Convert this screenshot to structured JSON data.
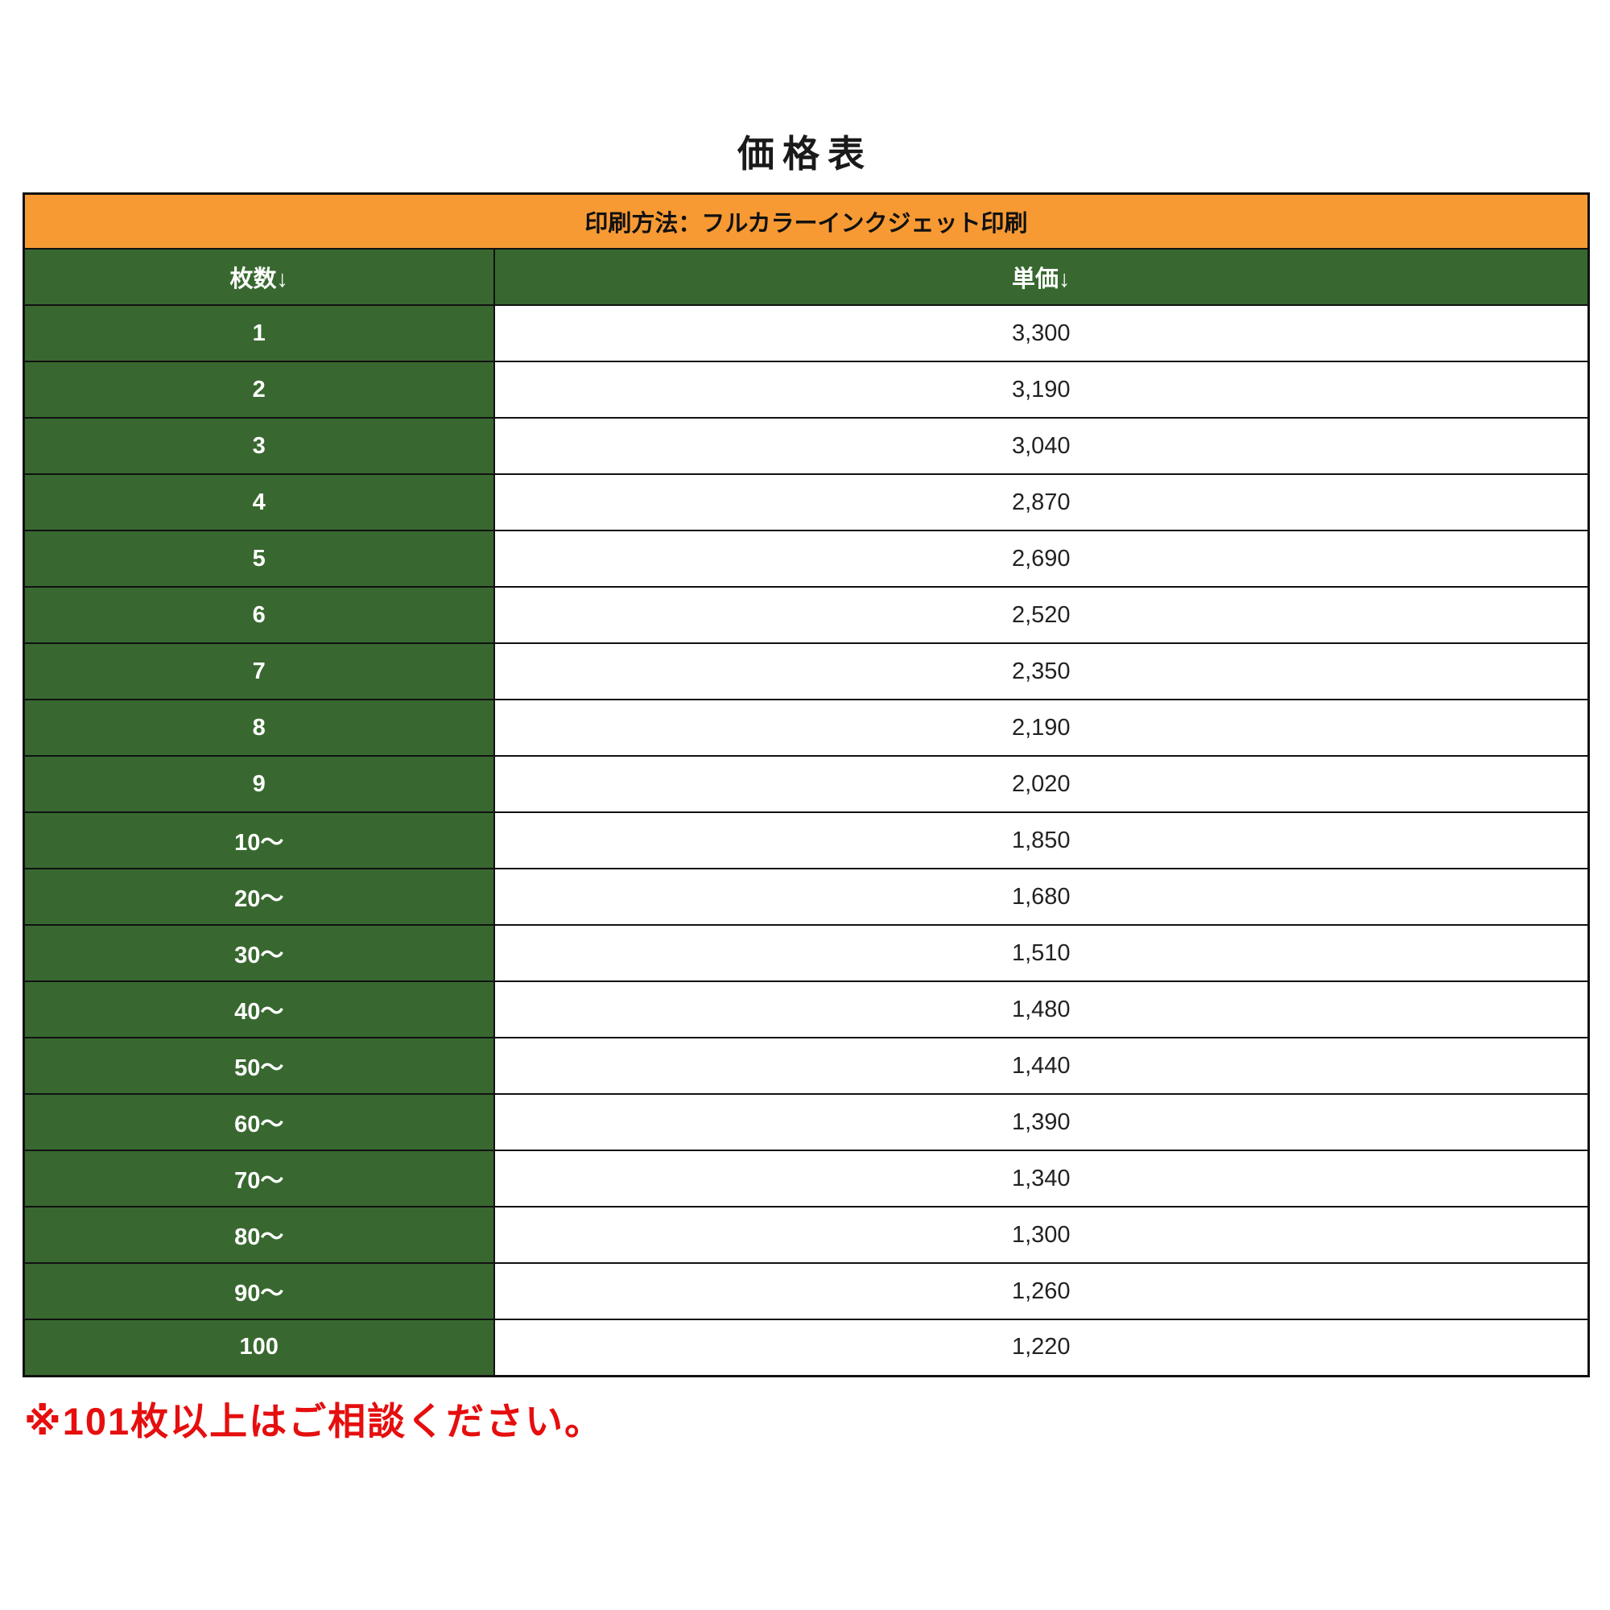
{
  "page": {
    "title": "価格表",
    "note": "※101枚以上はご相談ください。"
  },
  "table": {
    "method_header": "印刷方法：フルカラーインクジェット印刷",
    "columns": [
      "枚数↓",
      "単価↓"
    ],
    "rows": [
      {
        "qty": "1",
        "price": "3,300"
      },
      {
        "qty": "2",
        "price": "3,190"
      },
      {
        "qty": "3",
        "price": "3,040"
      },
      {
        "qty": "4",
        "price": "2,870"
      },
      {
        "qty": "5",
        "price": "2,690"
      },
      {
        "qty": "6",
        "price": "2,520"
      },
      {
        "qty": "7",
        "price": "2,350"
      },
      {
        "qty": "8",
        "price": "2,190"
      },
      {
        "qty": "9",
        "price": "2,020"
      },
      {
        "qty": "10〜",
        "price": "1,850"
      },
      {
        "qty": "20〜",
        "price": "1,680"
      },
      {
        "qty": "30〜",
        "price": "1,510"
      },
      {
        "qty": "40〜",
        "price": "1,480"
      },
      {
        "qty": "50〜",
        "price": "1,440"
      },
      {
        "qty": "60〜",
        "price": "1,390"
      },
      {
        "qty": "70〜",
        "price": "1,340"
      },
      {
        "qty": "80〜",
        "price": "1,300"
      },
      {
        "qty": "90〜",
        "price": "1,260"
      },
      {
        "qty": "100",
        "price": "1,220"
      }
    ]
  },
  "colors": {
    "orange_banner": "#F79A34",
    "green_cell": "#38682F",
    "note_red": "#E60E0E"
  }
}
